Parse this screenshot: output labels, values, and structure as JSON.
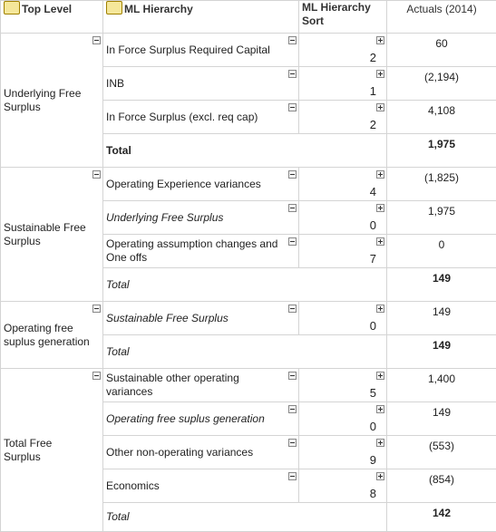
{
  "header": {
    "columns": [
      "Top Level",
      "ML Hierarchy",
      "ML Hierarchy Sort",
      "Actuals (2014)"
    ]
  },
  "groups": [
    {
      "label": "Underlying Free Surplus",
      "rows": [
        {
          "name": "In Force Surplus Required Capital",
          "sort": "2",
          "actual": "60"
        },
        {
          "name": "INB",
          "sort": "1",
          "actual": "(2,194)"
        },
        {
          "name": "In Force Surplus (excl. req cap)",
          "sort": "2",
          "actual": "4,108"
        }
      ],
      "total": {
        "label": "Total",
        "actual": "1,975",
        "italic": false
      }
    },
    {
      "label": "Sustainable Free Surplus",
      "rows": [
        {
          "name": "Operating Experience variances",
          "sort": "4",
          "actual": "(1,825)"
        },
        {
          "name": "Underlying Free Surplus",
          "sort": "0",
          "actual": "1,975",
          "italic": true
        },
        {
          "name": "Operating assumption changes and One offs",
          "sort": "7",
          "actual": "0"
        }
      ],
      "total": {
        "label": "Total",
        "actual": "149",
        "italic": true
      }
    },
    {
      "label": "Operating free suplus generation",
      "rows": [
        {
          "name": "Sustainable Free Surplus",
          "sort": "0",
          "actual": "149",
          "italic": true
        }
      ],
      "total": {
        "label": "Total",
        "actual": "149",
        "italic": true
      }
    },
    {
      "label": "Total Free Surplus",
      "rows": [
        {
          "name": "Sustainable other operating variances",
          "sort": "5",
          "actual": "1,400"
        },
        {
          "name": "Operating free suplus generation",
          "sort": "0",
          "actual": "149",
          "italic": true
        },
        {
          "name": "Other non-operating variances",
          "sort": "9",
          "actual": "(553)"
        },
        {
          "name": "Economics",
          "sort": "8",
          "actual": "(854)"
        }
      ],
      "total": {
        "label": "Total",
        "actual": "142",
        "italic": true
      }
    }
  ]
}
